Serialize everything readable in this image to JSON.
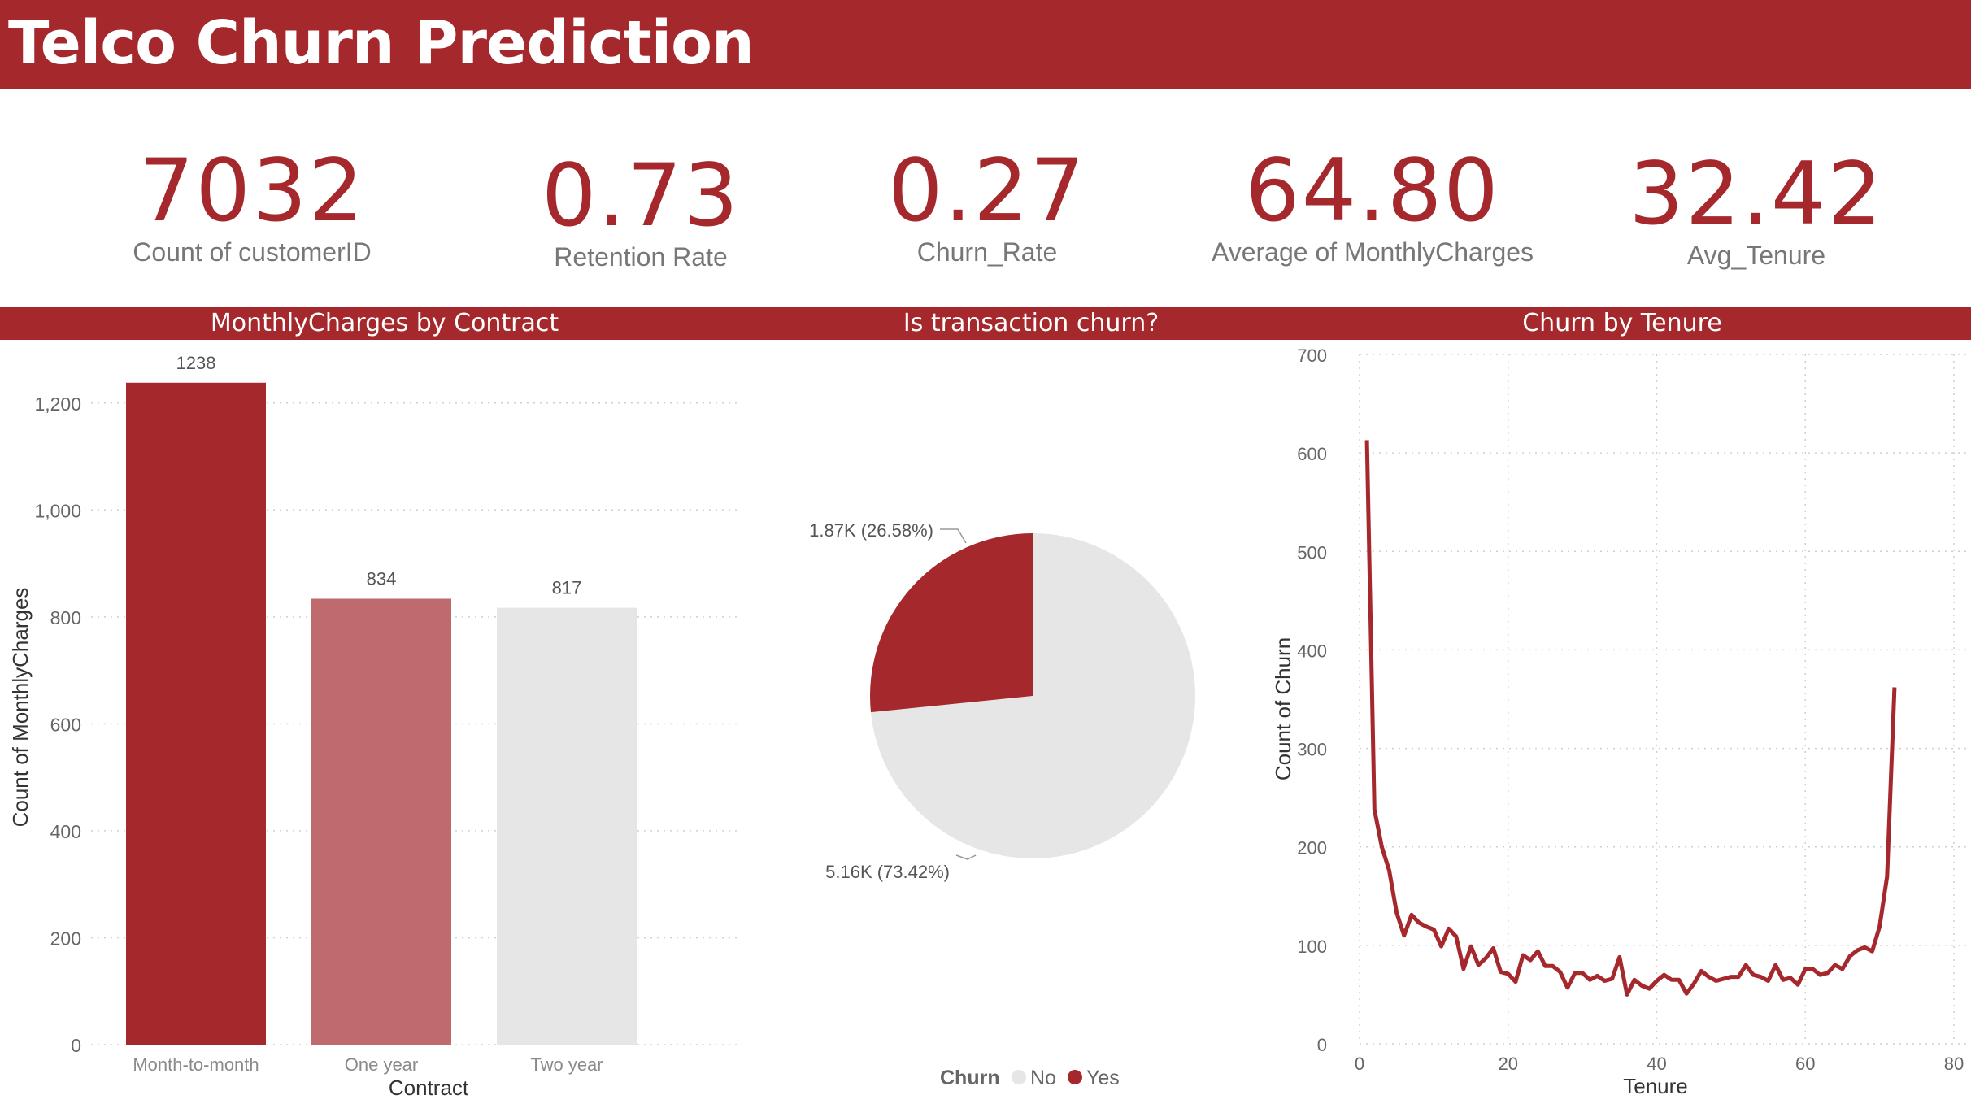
{
  "header": {
    "title": "Telco Churn Prediction"
  },
  "kpis": [
    {
      "value": "7032",
      "label": "Count of customerID"
    },
    {
      "value": "0.73",
      "label": "Retention Rate"
    },
    {
      "value": "0.27",
      "label": "Churn_Rate"
    },
    {
      "value": "64.80",
      "label": "Average of MonthlyCharges"
    },
    {
      "value": "32.42",
      "label": "Avg_Tenure"
    }
  ],
  "colors": {
    "accent": "#a5282c",
    "mid": "#bf6a6e",
    "light": "#e6e6e6",
    "axis_text": "#666666"
  },
  "chart_data": [
    {
      "type": "bar",
      "title": "MonthlyCharges by Contract",
      "xlabel": "Contract",
      "ylabel": "Count of MonthlyCharges",
      "categories": [
        "Month-to-month",
        "One year",
        "Two year"
      ],
      "values": [
        1238,
        834,
        817
      ],
      "data_labels": [
        "1238",
        "834",
        "817"
      ],
      "bar_colors": [
        "#a5282c",
        "#bf6a6e",
        "#e6e6e6"
      ],
      "ylim": [
        0,
        1300
      ],
      "yticks": [
        0,
        200,
        400,
        600,
        800,
        1000,
        1200
      ],
      "ytick_labels": [
        "0",
        "200",
        "400",
        "600",
        "800",
        "1,000",
        "1,200"
      ],
      "grid": true
    },
    {
      "type": "pie",
      "title": "Is transaction churn?",
      "legend_title": "Churn",
      "legend_position": "bottom",
      "slices": [
        {
          "name": "No",
          "value": 5160,
          "label": "5.16K (73.42%)",
          "color": "#e6e6e6"
        },
        {
          "name": "Yes",
          "value": 1870,
          "label": "1.87K (26.58%)",
          "color": "#a5282c"
        }
      ]
    },
    {
      "type": "line",
      "title": "Churn by Tenure",
      "xlabel": "Tenure",
      "ylabel": "Count of Churn",
      "xlim": [
        0,
        80
      ],
      "ylim": [
        0,
        700
      ],
      "xticks": [
        0,
        20,
        40,
        60,
        80
      ],
      "yticks": [
        0,
        100,
        200,
        300,
        400,
        500,
        600,
        700
      ],
      "grid": true,
      "color": "#a5282c",
      "x": [
        1,
        2,
        3,
        4,
        5,
        6,
        7,
        8,
        9,
        10,
        11,
        12,
        13,
        14,
        15,
        16,
        17,
        18,
        19,
        20,
        21,
        22,
        23,
        24,
        25,
        26,
        27,
        28,
        29,
        30,
        31,
        32,
        33,
        34,
        35,
        36,
        37,
        38,
        39,
        40,
        41,
        42,
        43,
        44,
        45,
        46,
        47,
        48,
        49,
        50,
        51,
        52,
        53,
        54,
        55,
        56,
        57,
        58,
        59,
        60,
        61,
        62,
        63,
        64,
        65,
        66,
        67,
        68,
        69,
        70,
        71,
        72
      ],
      "y": [
        613,
        238,
        200,
        176,
        133,
        110,
        131,
        123,
        119,
        116,
        99,
        117,
        109,
        76,
        99,
        80,
        87,
        97,
        73,
        71,
        63,
        90,
        85,
        94,
        79,
        79,
        73,
        57,
        72,
        72,
        65,
        69,
        64,
        66,
        88,
        50,
        65,
        59,
        56,
        64,
        70,
        65,
        65,
        51,
        61,
        74,
        68,
        64,
        66,
        68,
        68,
        80,
        70,
        68,
        64,
        80,
        65,
        67,
        60,
        76,
        76,
        70,
        72,
        80,
        76,
        89,
        95,
        98,
        94,
        119,
        170,
        362
      ]
    }
  ]
}
